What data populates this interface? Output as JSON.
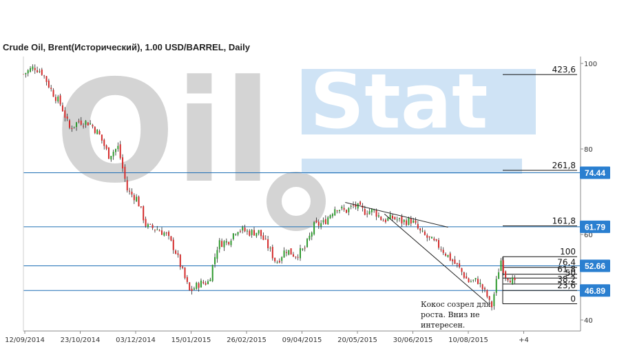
{
  "title": "Crude Oil, Brent(Исторический), 1.00 USD/BARREL, Daily",
  "watermark": {
    "word_left": "Oil",
    "word_right": "Stat",
    "color_gray": "#d4d4d4",
    "color_blue": "#cfe3f5"
  },
  "colors": {
    "up": "#2e9a2e",
    "down": "#d42a2a",
    "level_line": "#1f6fb5",
    "badge": "#2a7fd0",
    "trend": "#222222",
    "axis": "#888888"
  },
  "chart_data": {
    "type": "candlestick",
    "ylim": [
      40,
      101
    ],
    "y_ticks": [
      {
        "value": 100,
        "label": "100"
      },
      {
        "value": 80,
        "label": "80"
      },
      {
        "value": 60,
        "label": "60"
      },
      {
        "value": 40,
        "label": "40"
      }
    ],
    "x_tick_labels": [
      "12/09/2014",
      "23/10/2014",
      "03/12/2014",
      "15/01/2015",
      "26/02/2015",
      "09/04/2015",
      "20/05/2015",
      "30/06/2015",
      "10/08/2015",
      "+4"
    ],
    "price_levels": [
      {
        "value": 74.44,
        "label": "74.44"
      },
      {
        "value": 61.79,
        "label": "61.79"
      },
      {
        "value": 52.66,
        "label": "52.66"
      },
      {
        "value": 46.89,
        "label": "46.89"
      }
    ],
    "fibonacci": [
      {
        "label": "423,6",
        "value": 97.4
      },
      {
        "label": "261,8",
        "value": 75.0
      },
      {
        "label": "161,8",
        "value": 62.0
      },
      {
        "label": "100",
        "value": 54.8
      },
      {
        "label": "76,4",
        "value": 52.3
      },
      {
        "label": "61,8",
        "value": 50.7
      },
      {
        "label": "50",
        "value": 49.8
      },
      {
        "label": "38,2",
        "value": 48.4
      },
      {
        "label": "23,6",
        "value": 46.9
      },
      {
        "label": "0",
        "value": 43.8
      }
    ],
    "trendlines": [
      {
        "from": [
          "2015-05-08",
          67.5
        ],
        "to": [
          "2015-07-23",
          61.7
        ]
      },
      {
        "from": [
          "2015-06-06",
          64.8
        ],
        "to": [
          "2015-08-21",
          44.0
        ]
      }
    ],
    "close_path": [
      [
        "2014-09-12",
        97.5
      ],
      [
        "2014-09-20",
        99.2
      ],
      [
        "2014-09-26",
        97.9
      ],
      [
        "2014-10-03",
        93.5
      ],
      [
        "2014-10-10",
        90.2
      ],
      [
        "2014-10-16",
        84.8
      ],
      [
        "2014-10-23",
        86.5
      ],
      [
        "2014-10-31",
        86.1
      ],
      [
        "2014-11-07",
        83.4
      ],
      [
        "2014-11-14",
        78.5
      ],
      [
        "2014-11-21",
        80.4
      ],
      [
        "2014-11-28",
        70.1
      ],
      [
        "2014-12-05",
        68.4
      ],
      [
        "2014-12-12",
        61.8
      ],
      [
        "2014-12-19",
        61.4
      ],
      [
        "2014-12-26",
        60.2
      ],
      [
        "2015-01-02",
        56.5
      ],
      [
        "2015-01-09",
        50.1
      ],
      [
        "2015-01-13",
        46.6
      ],
      [
        "2015-01-20",
        48.5
      ],
      [
        "2015-01-27",
        48.9
      ],
      [
        "2015-02-03",
        57.9
      ],
      [
        "2015-02-10",
        58.3
      ],
      [
        "2015-02-17",
        61.4
      ],
      [
        "2015-02-26",
        60.5
      ],
      [
        "2015-03-05",
        60.6
      ],
      [
        "2015-03-12",
        57.1
      ],
      [
        "2015-03-18",
        53.4
      ],
      [
        "2015-03-25",
        56.5
      ],
      [
        "2015-04-01",
        55.1
      ],
      [
        "2015-04-08",
        56.6
      ],
      [
        "2015-04-15",
        62.0
      ],
      [
        "2015-04-22",
        62.7
      ],
      [
        "2015-05-01",
        66.5
      ],
      [
        "2015-05-08",
        65.4
      ],
      [
        "2015-05-15",
        66.8
      ],
      [
        "2015-05-22",
        65.4
      ],
      [
        "2015-05-29",
        65.6
      ],
      [
        "2015-06-05",
        63.3
      ],
      [
        "2015-06-12",
        63.9
      ],
      [
        "2015-06-19",
        63.0
      ],
      [
        "2015-06-26",
        63.3
      ],
      [
        "2015-07-03",
        60.3
      ],
      [
        "2015-07-10",
        58.7
      ],
      [
        "2015-07-17",
        57.1
      ],
      [
        "2015-07-24",
        54.6
      ],
      [
        "2015-07-31",
        52.2
      ],
      [
        "2015-08-07",
        49.0
      ],
      [
        "2015-08-14",
        49.2
      ],
      [
        "2015-08-21",
        45.5
      ],
      [
        "2015-08-24",
        42.7
      ],
      [
        "2015-08-27",
        47.6
      ],
      [
        "2015-08-31",
        54.2
      ],
      [
        "2015-09-03",
        50.7
      ],
      [
        "2015-09-08",
        49.5
      ],
      [
        "2015-09-11",
        48.1
      ]
    ],
    "annotation": [
      "Кокос созрел для",
      "роста. Вниз не",
      "интересен."
    ]
  }
}
